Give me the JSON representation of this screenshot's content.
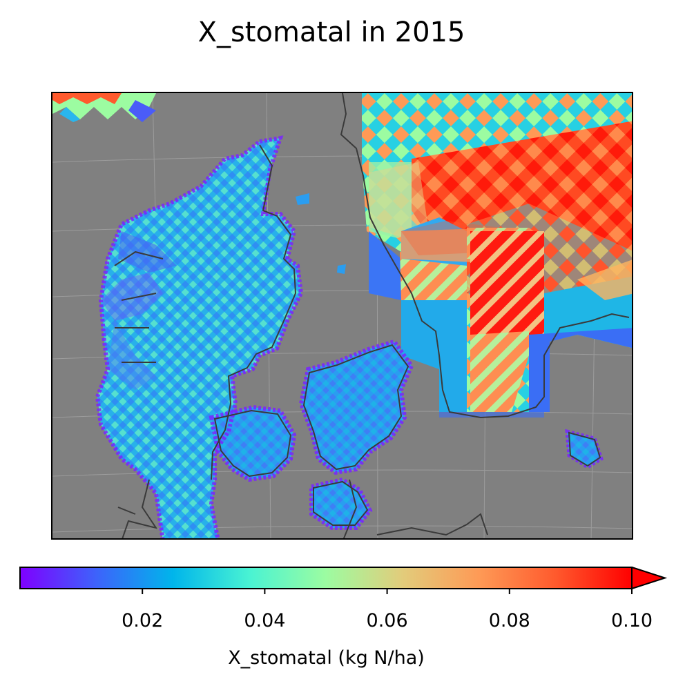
{
  "figure": {
    "title": "X_stomatal in 2015"
  },
  "map": {
    "background_color": "#808080",
    "coastline_color": "#3a3a3a",
    "gridline_color": "#a8a8a8",
    "colormap": "rainbow"
  },
  "colorbar": {
    "label": "X_stomatal (kg N/ha)",
    "min": 0.0,
    "max": 0.1,
    "extend": "max",
    "ticks": [
      {
        "value": 0.02,
        "label": "0.02"
      },
      {
        "value": 0.04,
        "label": "0.04"
      },
      {
        "value": 0.06,
        "label": "0.06"
      },
      {
        "value": 0.08,
        "label": "0.08"
      },
      {
        "value": 0.1,
        "label": "0.10"
      }
    ],
    "stops": [
      "#7f00ff",
      "#3d63fb",
      "#00b5eb",
      "#49f3d3",
      "#9cfca1",
      "#e2cc7b",
      "#fe9a56",
      "#ff5a2d",
      "#ff0000"
    ]
  }
}
